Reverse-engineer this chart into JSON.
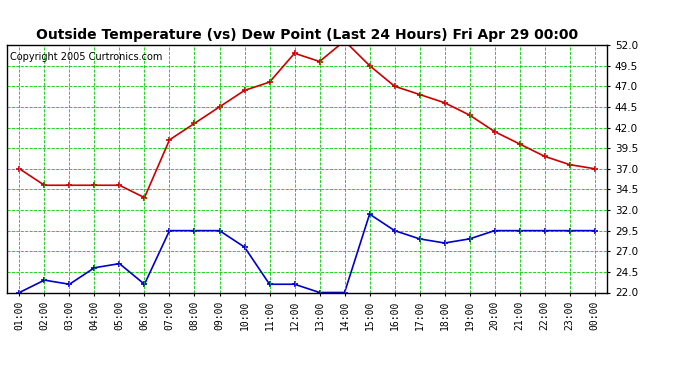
{
  "title": "Outside Temperature (vs) Dew Point (Last 24 Hours) Fri Apr 29 00:00",
  "copyright": "Copyright 2005 Curtronics.com",
  "x_labels": [
    "01:00",
    "02:00",
    "03:00",
    "04:00",
    "05:00",
    "06:00",
    "07:00",
    "08:00",
    "09:00",
    "10:00",
    "11:00",
    "12:00",
    "13:00",
    "14:00",
    "15:00",
    "16:00",
    "17:00",
    "18:00",
    "19:00",
    "20:00",
    "21:00",
    "22:00",
    "23:00",
    "00:00"
  ],
  "temp_data": [
    37.0,
    35.0,
    35.0,
    35.0,
    35.0,
    33.5,
    40.5,
    42.5,
    44.5,
    46.5,
    47.5,
    51.0,
    50.0,
    52.5,
    49.5,
    47.0,
    46.0,
    45.0,
    43.5,
    41.5,
    40.0,
    38.5,
    37.5,
    37.0
  ],
  "dew_data": [
    22.0,
    23.5,
    23.0,
    25.0,
    25.5,
    23.0,
    29.5,
    29.5,
    29.5,
    27.5,
    23.0,
    23.0,
    22.0,
    22.0,
    31.5,
    29.5,
    28.5,
    28.0,
    28.5,
    29.5,
    29.5,
    29.5,
    29.5,
    29.5
  ],
  "ylim": [
    22.0,
    52.0
  ],
  "yticks": [
    22.0,
    24.5,
    27.0,
    29.5,
    32.0,
    34.5,
    37.0,
    39.5,
    42.0,
    44.5,
    47.0,
    49.5,
    52.0
  ],
  "temp_color": "#cc0000",
  "dew_color": "#0000cc",
  "bg_color": "#ffffff",
  "plot_bg_color": "#ffffff",
  "grid_color": "#00cc00",
  "title_fontsize": 10,
  "copyright_fontsize": 7
}
